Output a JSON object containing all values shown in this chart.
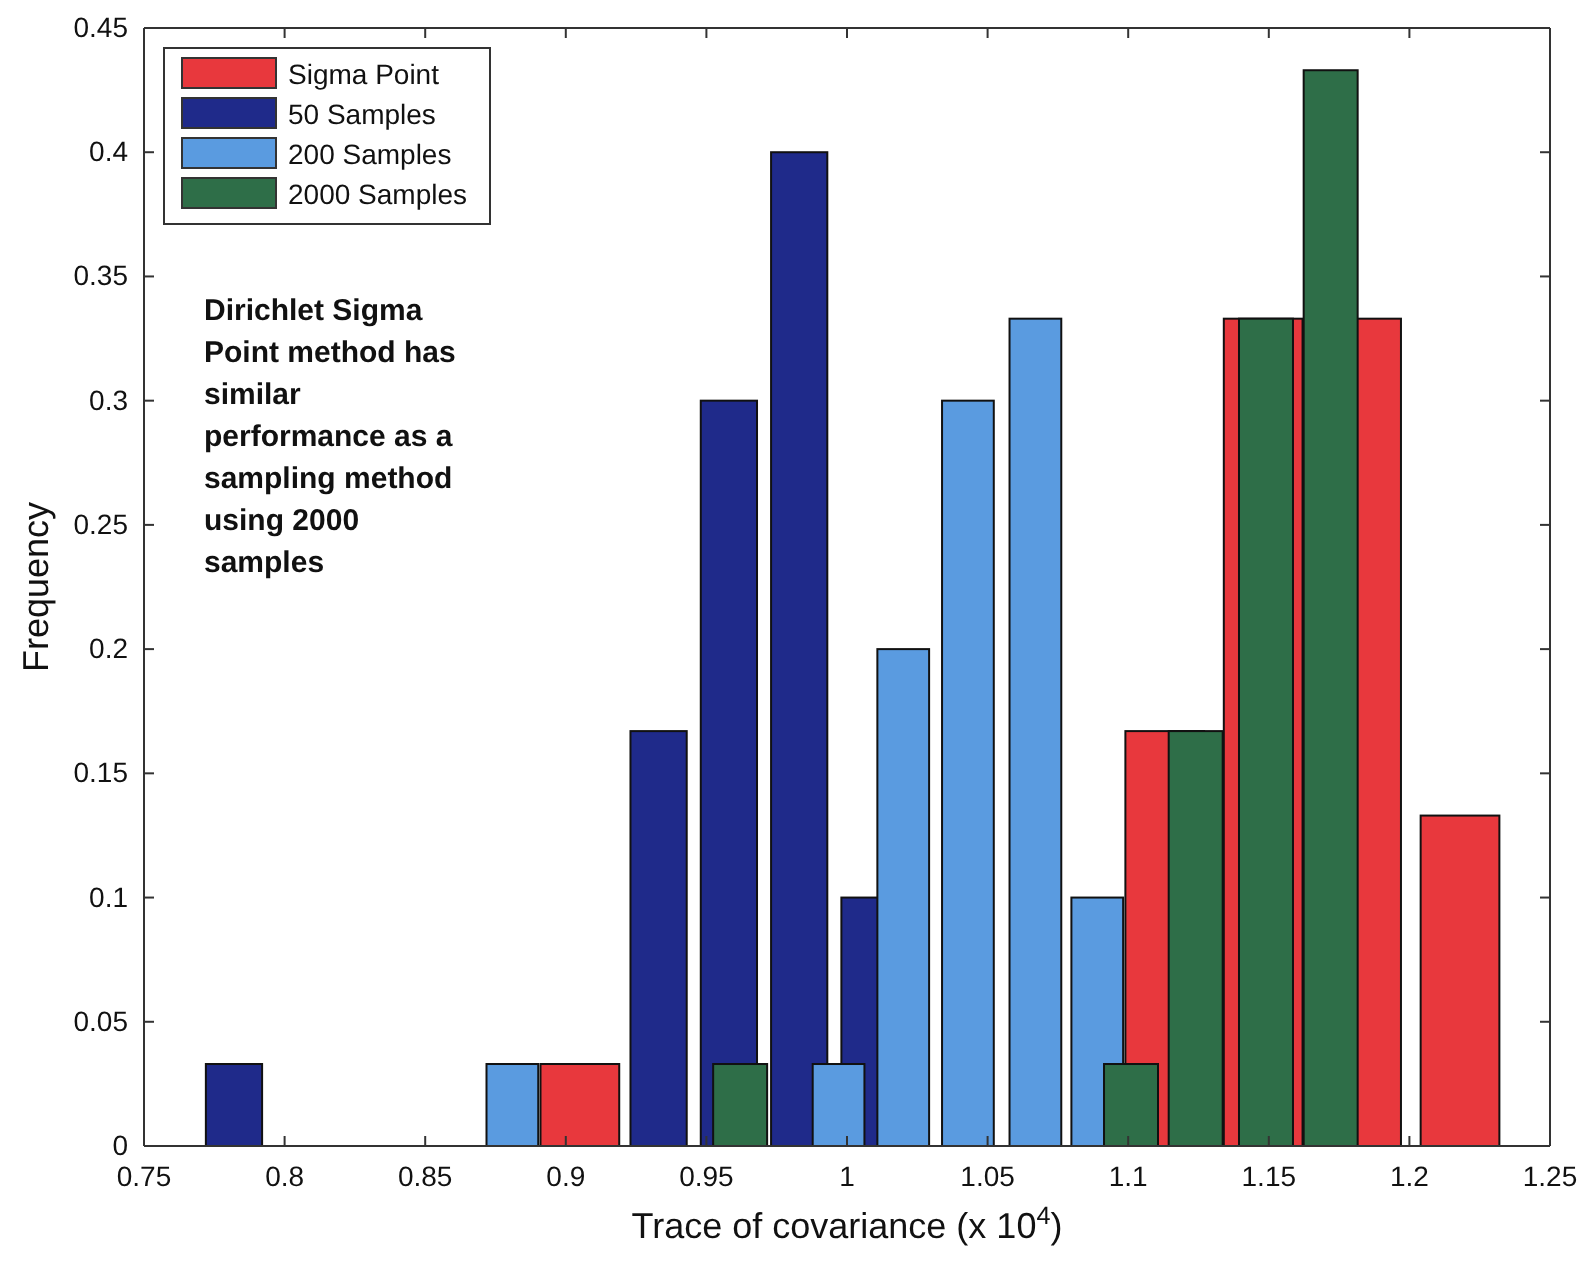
{
  "chart_data": {
    "type": "bar",
    "xlabel": "Trace of covariance (x 10$^{4}$)",
    "ylabel": "Frequency",
    "xlim": [
      0.75,
      1.25
    ],
    "xticks": [
      0.75,
      0.8,
      0.85,
      0.9,
      0.95,
      1,
      1.05,
      1.1,
      1.15,
      1.2,
      1.25
    ],
    "ylim": [
      0,
      0.45
    ],
    "yticks": [
      0,
      0.05,
      0.1,
      0.15,
      0.2,
      0.25,
      0.3,
      0.35,
      0.4,
      0.45
    ],
    "legend": "top left",
    "grid": false,
    "annotations": [
      "Dirichlet Sigma Point method has similar performance as a sampling method using 2000 samples"
    ],
    "series": [
      {
        "name": "Sigma Point",
        "color": "#e8383d",
        "x": [
          0.905,
          1.113,
          1.148,
          1.183,
          1.218
        ],
        "values": [
          0.033,
          0.167,
          0.333,
          0.333,
          0.133
        ]
      },
      {
        "name": "50 Samples",
        "color": "#1f2a8a",
        "x": [
          0.782,
          0.933,
          0.958,
          0.983,
          1.008
        ],
        "values": [
          0.033,
          0.167,
          0.3,
          0.4,
          0.1
        ]
      },
      {
        "name": "200 Samples",
        "color": "#5a9be0",
        "x": [
          0.881,
          0.997,
          1.02,
          1.043,
          1.067,
          1.089
        ],
        "values": [
          0.033,
          0.033,
          0.2,
          0.3,
          0.333,
          0.1
        ]
      },
      {
        "name": "2000 Samples",
        "color": "#2e6e48",
        "x": [
          0.962,
          1.101,
          1.124,
          1.149,
          1.172
        ],
        "values": [
          0.033,
          0.033,
          0.167,
          0.333,
          0.433
        ]
      }
    ]
  }
}
